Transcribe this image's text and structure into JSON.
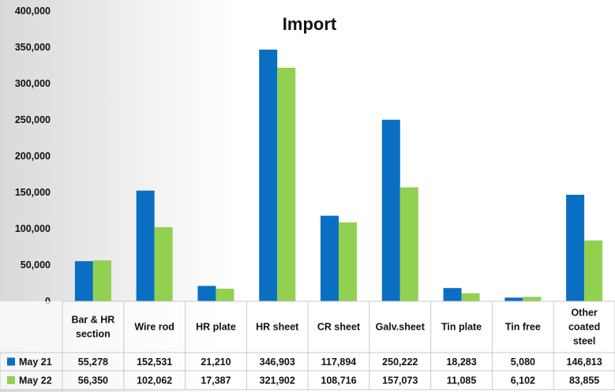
{
  "chart_data": {
    "type": "bar",
    "title": "Import",
    "categories": [
      [
        "Bar & HR",
        "section"
      ],
      [
        "Wire rod"
      ],
      [
        "HR plate"
      ],
      [
        "HR sheet"
      ],
      [
        "CR sheet"
      ],
      [
        "Galv.sheet"
      ],
      [
        "Tin plate"
      ],
      [
        "Tin free"
      ],
      [
        "Other",
        "coated",
        "steel"
      ]
    ],
    "series": [
      {
        "name": "May 21",
        "color": "#0a6fc2",
        "values": [
          55278,
          152531,
          21210,
          346903,
          117894,
          250222,
          18283,
          5080,
          146813
        ],
        "labels": [
          "55,278",
          "152,531",
          "21,210",
          "346,903",
          "117,894",
          "250,222",
          "18,283",
          "5,080",
          "146,813"
        ]
      },
      {
        "name": "May 22",
        "color": "#92d050",
        "values": [
          56350,
          102062,
          17387,
          321902,
          108716,
          157073,
          11085,
          6102,
          83855
        ],
        "labels": [
          "56,350",
          "102,062",
          "17,387",
          "321,902",
          "108,716",
          "157,073",
          "11,085",
          "6,102",
          "83,855"
        ]
      }
    ],
    "ylim": [
      0,
      400000
    ],
    "yticks": [
      0,
      50000,
      100000,
      150000,
      200000,
      250000,
      300000,
      350000,
      400000
    ],
    "ytick_labels": [
      "0",
      "50,000",
      "100,000",
      "150,000",
      "200,000",
      "250,000",
      "300,000",
      "350,000",
      "400,000"
    ],
    "legend": "data table below chart",
    "grid": false
  }
}
